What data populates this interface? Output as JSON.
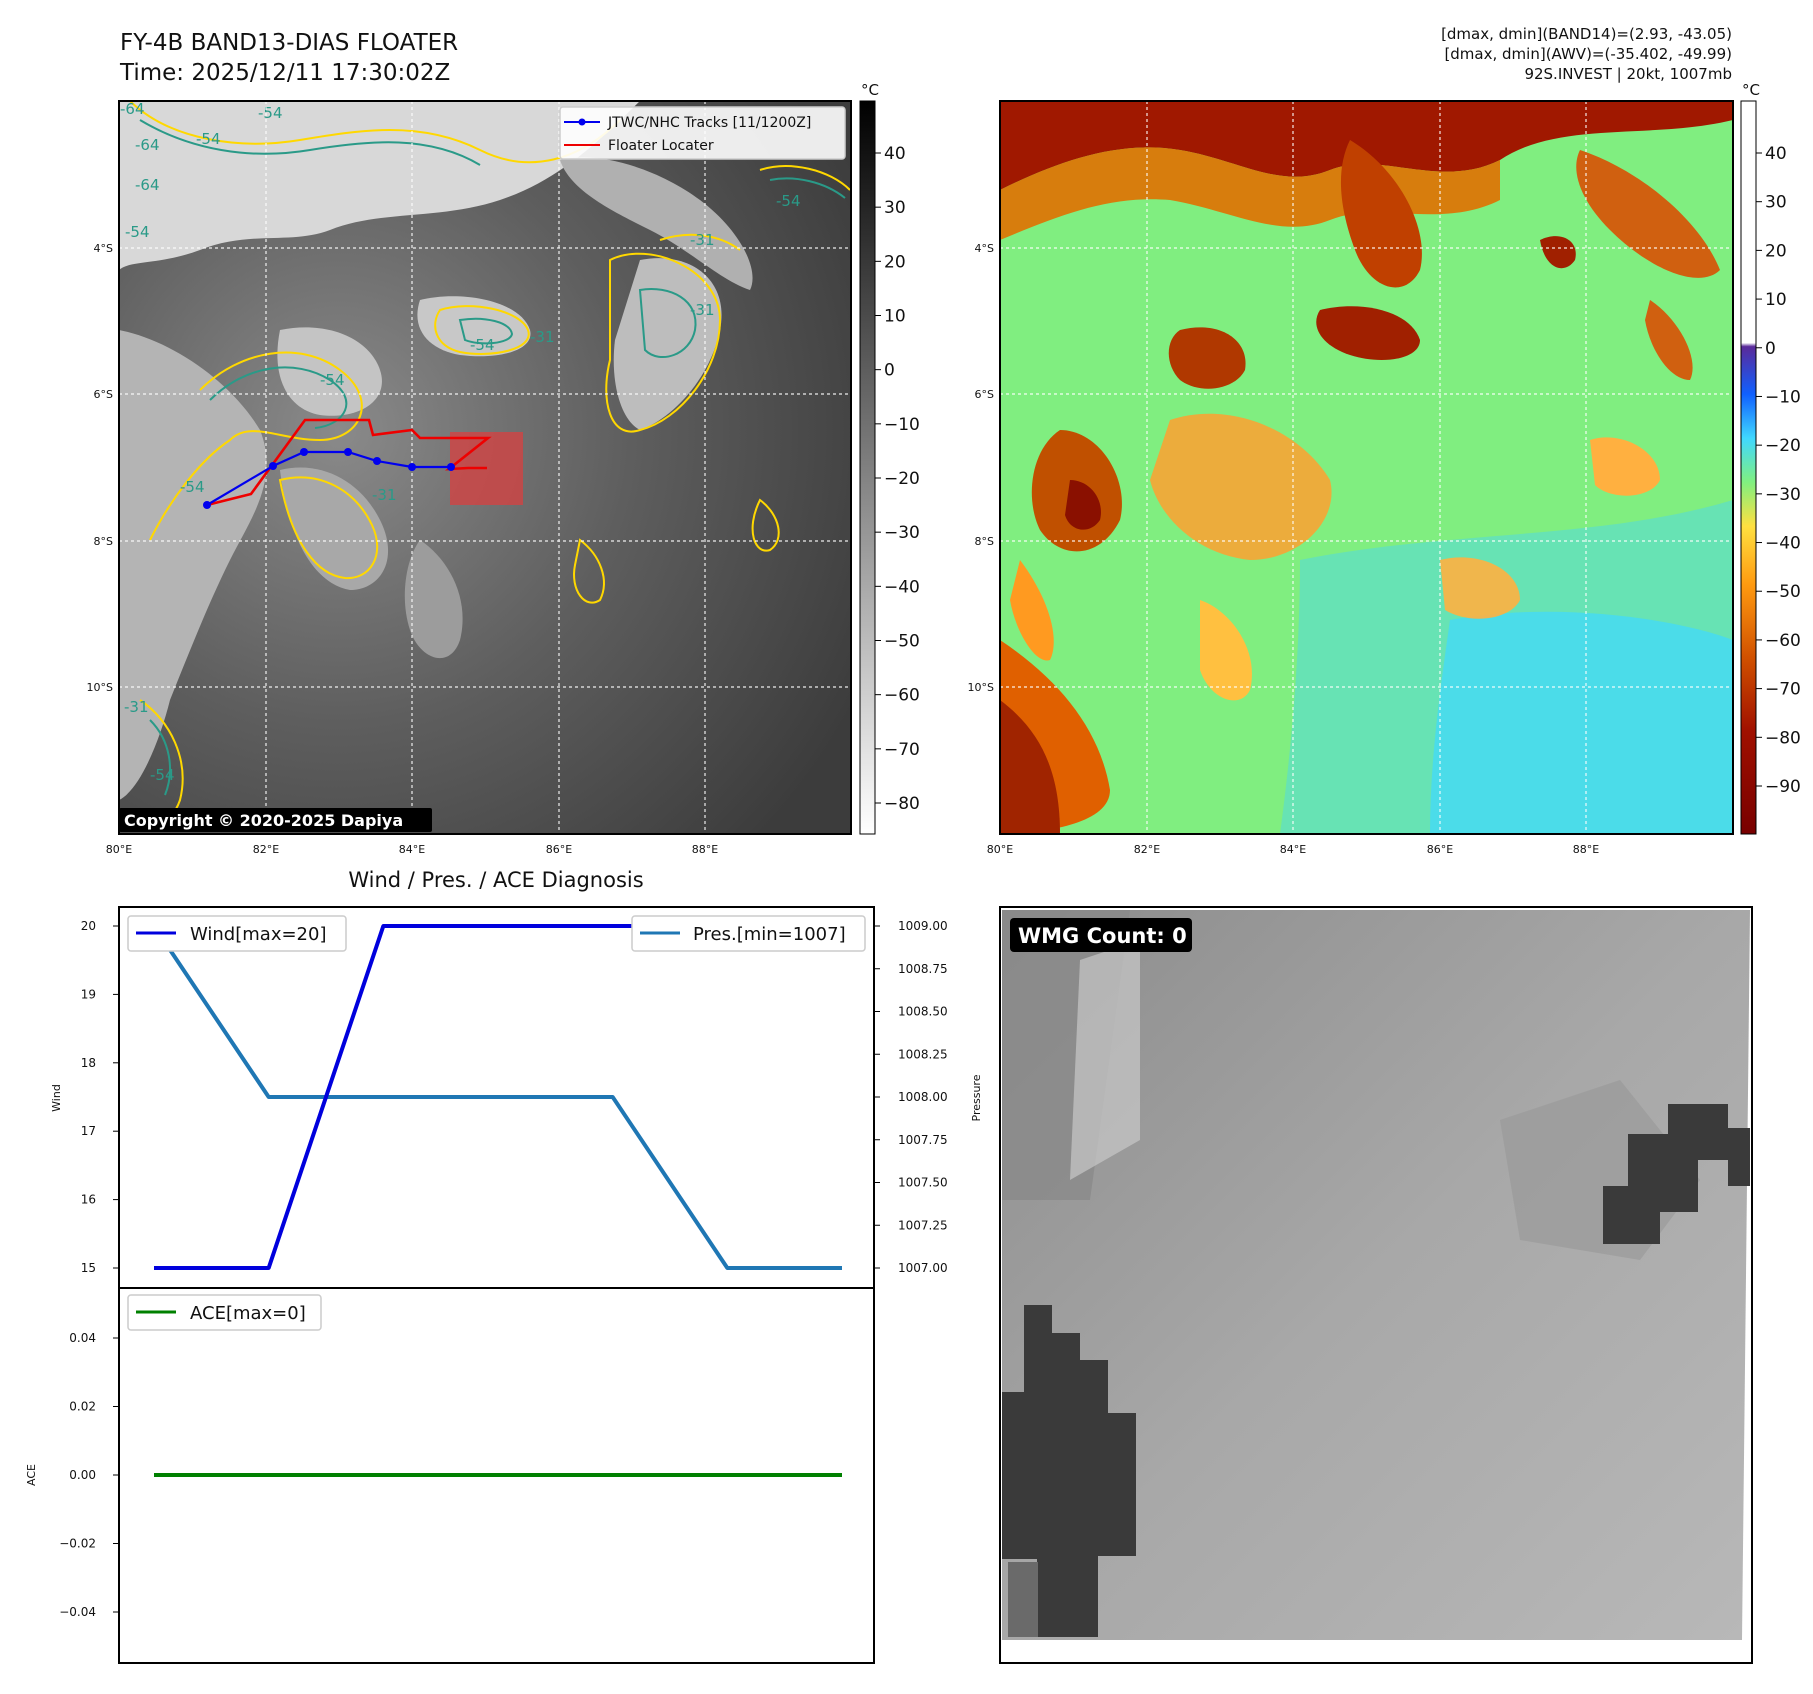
{
  "header": {
    "title": "FY-4B BAND13-DIAS FLOATER",
    "time": "Time: 2025/12/11 17:30:02Z",
    "stats": [
      "[dmax, dmin](BAND14)=(2.93, -43.05)",
      "[dmax, dmin](AWV)=(-35.402, -49.99)",
      "92S.INVEST | 20kt, 1007mb"
    ]
  },
  "maps": {
    "lon_ticks": [
      "80°E",
      "82°E",
      "84°E",
      "86°E",
      "88°E"
    ],
    "lat_ticks": [
      "4°S",
      "6°S",
      "8°S",
      "10°S"
    ],
    "unit": "°C",
    "colorbar1_ticks": [
      40,
      30,
      20,
      10,
      0,
      -10,
      -20,
      -30,
      -40,
      -50,
      -60,
      -70,
      -80
    ],
    "colorbar2_ticks": [
      40,
      30,
      20,
      10,
      0,
      -10,
      -20,
      -30,
      -40,
      -50,
      -60,
      -70,
      -80,
      -90
    ],
    "legend": {
      "tracks": "JTWC/NHC Tracks [11/1200Z]",
      "locater": "Floater Locater"
    },
    "contour_labels": [
      "-64",
      "-54",
      "-64",
      "-54",
      "-64",
      "-54",
      "-54",
      "-31",
      "-54",
      "-31",
      "-31",
      "-54",
      "-31",
      "-54",
      "-31",
      "-54"
    ],
    "copyright": "Copyright © 2020-2025 Dapiya",
    "track_color": "#0000ee",
    "locater_color": "#ee0000"
  },
  "diag": {
    "title": "Wind / Pres. / ACE Diagnosis",
    "wind_axis": "Wind",
    "pres_axis": "Pressure",
    "ace_axis": "ACE",
    "wind_legend": "Wind[max=20]",
    "pres_legend": "Pres.[min=1007]",
    "ace_legend": "ACE[max=0]"
  },
  "wmg": {
    "label": "WMG Count: 0"
  },
  "chart_data": [
    {
      "type": "line",
      "title": "Wind / Pres. / ACE Diagnosis",
      "ylabel": "Wind",
      "series": [
        {
          "name": "Wind[max=20]",
          "color": "#0000dd",
          "values": [
            15,
            15,
            20,
            20,
            20,
            20,
            20
          ]
        }
      ],
      "x": [
        0,
        1,
        2,
        3,
        4,
        5,
        6
      ],
      "ylim": [
        14.9,
        20.1
      ],
      "yticks": [
        15,
        16,
        17,
        18,
        19,
        20
      ]
    },
    {
      "type": "line",
      "ylabel": "Pressure",
      "series": [
        {
          "name": "Pres.[min=1007]",
          "color": "#1f77b4",
          "values": [
            1009,
            1008,
            1008,
            1008,
            1008,
            1007,
            1007
          ]
        }
      ],
      "x": [
        0,
        1,
        2,
        3,
        4,
        5,
        6
      ],
      "ylim": [
        1006.96,
        1009.04
      ],
      "yticks": [
        "1007.00",
        "1007.25",
        "1007.50",
        "1007.75",
        "1008.00",
        "1008.25",
        "1008.50",
        "1008.75",
        "1009.00"
      ]
    },
    {
      "type": "line",
      "ylabel": "ACE",
      "series": [
        {
          "name": "ACE[max=0]",
          "color": "#008000",
          "values": [
            0,
            0,
            0,
            0,
            0,
            0,
            0
          ]
        }
      ],
      "x": [
        0,
        1,
        2,
        3,
        4,
        5,
        6
      ],
      "ylim": [
        -0.055,
        0.055
      ],
      "yticks": [
        "0.04",
        "0.02",
        "0.00",
        "−0.02",
        "−0.04"
      ]
    }
  ]
}
